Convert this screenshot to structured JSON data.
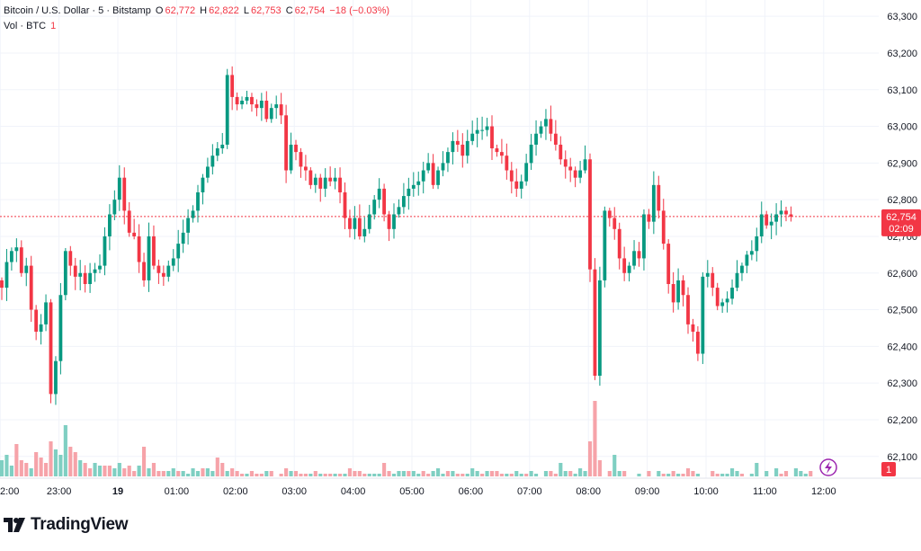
{
  "legend": {
    "symbol": "Bitcoin / U.S. Dollar · 5 · Bitstamp",
    "open_label": "O",
    "open_value": "62,772",
    "high_label": "H",
    "high_value": "62,822",
    "low_label": "L",
    "low_value": "62,753",
    "close_label": "C",
    "close_value": "62,754",
    "change": "−18 (−0.03%)",
    "vol_label": "Vol · BTC",
    "vol_value": "1"
  },
  "price_tag": {
    "price": "62,754",
    "countdown": "02:09"
  },
  "volume_tag": "1",
  "logo_text": "TradingView",
  "colors": {
    "up": "#089981",
    "down": "#f23645",
    "up_vol": "#7fcfc2",
    "down_vol": "#f6a3a9",
    "grid": "#f0f3fa",
    "accent": "#9c27b0"
  },
  "icons": [
    "flash-icon",
    "tradingview-logo-icon"
  ],
  "chart_data": {
    "type": "candlestick",
    "title": "Bitcoin / U.S. Dollar · 5 · Bitstamp",
    "y_ticks": [
      "63,300",
      "63,200",
      "63,100",
      "63,000",
      "62,900",
      "62,800",
      "62,700",
      "62,600",
      "62,500",
      "62,400",
      "62,300",
      "62,200",
      "62,100"
    ],
    "y_tick_values": [
      63300,
      63200,
      63100,
      63000,
      62900,
      62800,
      62700,
      62600,
      62500,
      62400,
      62300,
      62200,
      62100
    ],
    "ylim": [
      62070,
      63320
    ],
    "x_ticks": [
      "2:00",
      "23:00",
      "19",
      "01:00",
      "02:00",
      "03:00",
      "04:00",
      "05:00",
      "06:00",
      "07:00",
      "08:00",
      "09:00",
      "10:00",
      "11:00",
      "12:00"
    ],
    "x_tick_hours": [
      -2,
      -1,
      0,
      1,
      2,
      3,
      4,
      5,
      6,
      7,
      8,
      9,
      10,
      11,
      12
    ],
    "interval_minutes": 5,
    "last_price": 62754,
    "closes": [
      62560,
      62630,
      62660,
      62670,
      62600,
      62620,
      62500,
      62440,
      62460,
      62520,
      62270,
      62360,
      62540,
      62660,
      62620,
      62590,
      62600,
      62570,
      62600,
      62610,
      62620,
      62700,
      62760,
      62800,
      62860,
      62770,
      62710,
      62700,
      62630,
      62580,
      62700,
      62620,
      62600,
      62590,
      62620,
      62640,
      62680,
      62710,
      62750,
      62770,
      62820,
      62860,
      62890,
      62920,
      62940,
      62950,
      63140,
      63080,
      63060,
      63070,
      63080,
      63060,
      63050,
      63070,
      63020,
      63050,
      63060,
      63030,
      62880,
      62950,
      62930,
      62890,
      62880,
      62840,
      62860,
      62830,
      62860,
      62850,
      62860,
      62820,
      62750,
      62720,
      62750,
      62700,
      62720,
      62760,
      62800,
      62830,
      62760,
      62720,
      62760,
      62780,
      62810,
      62830,
      62840,
      62850,
      62880,
      62900,
      62840,
      62880,
      62900,
      62930,
      62960,
      62950,
      62920,
      62960,
      62980,
      62990,
      62990,
      63000,
      62940,
      62930,
      62920,
      62880,
      62850,
      62830,
      62850,
      62900,
      62950,
      62980,
      63000,
      63020,
      62980,
      62950,
      62910,
      62890,
      62880,
      62860,
      62880,
      62910,
      62610,
      62320,
      62580,
      62770,
      62750,
      62720,
      62640,
      62600,
      62620,
      62660,
      62640,
      62760,
      62740,
      62840,
      62770,
      62680,
      62570,
      62520,
      62580,
      62540,
      62460,
      62440,
      62380,
      62590,
      62600,
      62560,
      62510,
      62520,
      62530,
      62560,
      62600,
      62620,
      62650,
      62660,
      62700,
      62760,
      62730,
      62740,
      62760,
      62770,
      62760,
      62754
    ],
    "volume_series": [
      {
        "name": "up",
        "values": [
          0.6,
          0.8,
          0.4,
          0,
          0,
          0,
          0.3,
          0,
          0,
          0,
          0,
          1.0,
          0.8,
          1.9,
          0,
          0,
          0.6,
          0,
          0,
          0.5,
          0.4,
          0,
          0,
          0.3,
          0.5,
          0,
          0,
          0,
          0.4,
          0,
          0.3,
          0,
          0,
          0,
          0.2,
          0.3,
          0,
          0.2,
          0.1,
          0.3,
          0.2,
          0,
          0.3,
          0.2,
          0,
          0,
          0.2,
          0,
          0,
          0,
          0.1,
          0,
          0,
          0,
          0.2,
          0,
          0,
          0,
          0,
          0.2,
          0,
          0,
          0,
          0.1,
          0,
          0.1,
          0,
          0,
          0.1,
          0,
          0.1,
          0,
          0,
          0,
          0,
          0.1,
          0.1,
          0.1,
          0,
          0,
          0.1,
          0.2,
          0.2,
          0,
          0.2,
          0.1,
          0,
          0,
          0.2,
          0.3,
          0.1,
          0,
          0.2,
          0,
          0,
          0.1,
          0.3,
          0.2,
          0,
          0.2,
          0,
          0,
          0,
          0.1,
          0,
          0.2,
          0.1,
          0,
          0.2,
          0.1,
          0,
          0.2,
          0,
          0,
          0.5,
          0.2,
          0,
          0.1,
          0.3,
          0.2,
          0,
          0,
          0,
          0,
          0,
          0.8,
          0.2,
          0,
          0,
          0,
          0.1,
          0,
          0,
          0,
          0.2,
          0,
          0.1,
          0,
          0.1,
          0,
          0,
          0,
          0.1,
          0,
          0,
          0,
          0,
          0.1,
          0.1,
          0.3,
          0.2,
          0,
          0,
          0.1,
          0.5,
          0,
          0.2,
          0,
          0.3,
          0,
          0,
          0,
          0.3,
          0.2,
          0.1,
          0
        ]
      },
      {
        "name": "down",
        "values": [
          0,
          0,
          0,
          1.2,
          0.6,
          0.5,
          0,
          0.9,
          0.7,
          0.5,
          1.3,
          0,
          0,
          0,
          1.1,
          0.9,
          0,
          0.5,
          0.3,
          0,
          0,
          0.4,
          0.4,
          0,
          0,
          0.3,
          0.4,
          0.2,
          0,
          1.1,
          0,
          0.5,
          0.2,
          0.2,
          0,
          0,
          0.2,
          0,
          0,
          0,
          0,
          0.3,
          0,
          0,
          0.7,
          0.5,
          0,
          0.3,
          0.2,
          0.1,
          0,
          0.2,
          0.1,
          0.1,
          0,
          0.2,
          0,
          0.1,
          0.3,
          0,
          0.2,
          0.1,
          0.1,
          0,
          0.2,
          0,
          0.1,
          0.1,
          0,
          0.1,
          0,
          0.3,
          0.2,
          0.2,
          0.1,
          0,
          0,
          0,
          0.5,
          0.2,
          0,
          0,
          0,
          0.2,
          0,
          0,
          0.2,
          0.1,
          0,
          0,
          0,
          0.2,
          0,
          0.1,
          0.1,
          0,
          0,
          0,
          0.1,
          0,
          0.2,
          0.2,
          0.1,
          0,
          0.1,
          0,
          0,
          0.1,
          0,
          0,
          0,
          0,
          0.2,
          0.1,
          0,
          0,
          0.2,
          0.1,
          0.1,
          0.2,
          1.3,
          2.8,
          0.6,
          0,
          0.2,
          0.3,
          0.5,
          0.2,
          0,
          0,
          0.2,
          0,
          0.2,
          0,
          0.1,
          0.1,
          0.1,
          0.2,
          0,
          0.1,
          0.3,
          0.2,
          0.1,
          0,
          0,
          0.2,
          0.1,
          0.2,
          0,
          0,
          0.1,
          0.1,
          0,
          0,
          0.1,
          0,
          0.2,
          0,
          0.2,
          0.1,
          0.2,
          0,
          0,
          0,
          0.1,
          0.2
        ]
      }
    ],
    "volume_max": 3.0,
    "grid": true,
    "legend_position": "top-left"
  }
}
